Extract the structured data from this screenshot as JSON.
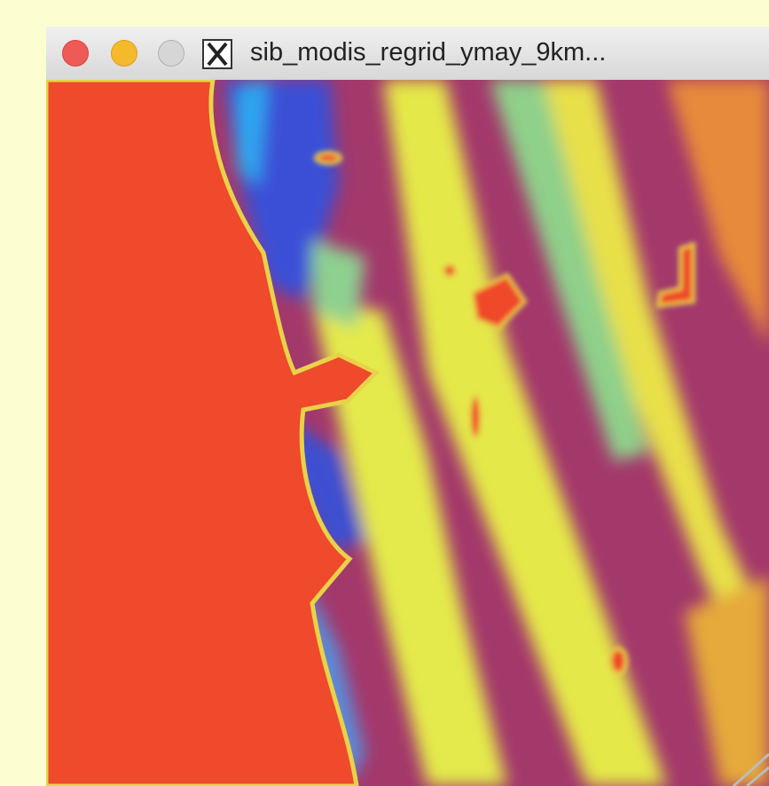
{
  "window": {
    "title": "sib_modis_regrid_ymay_9km..."
  }
}
